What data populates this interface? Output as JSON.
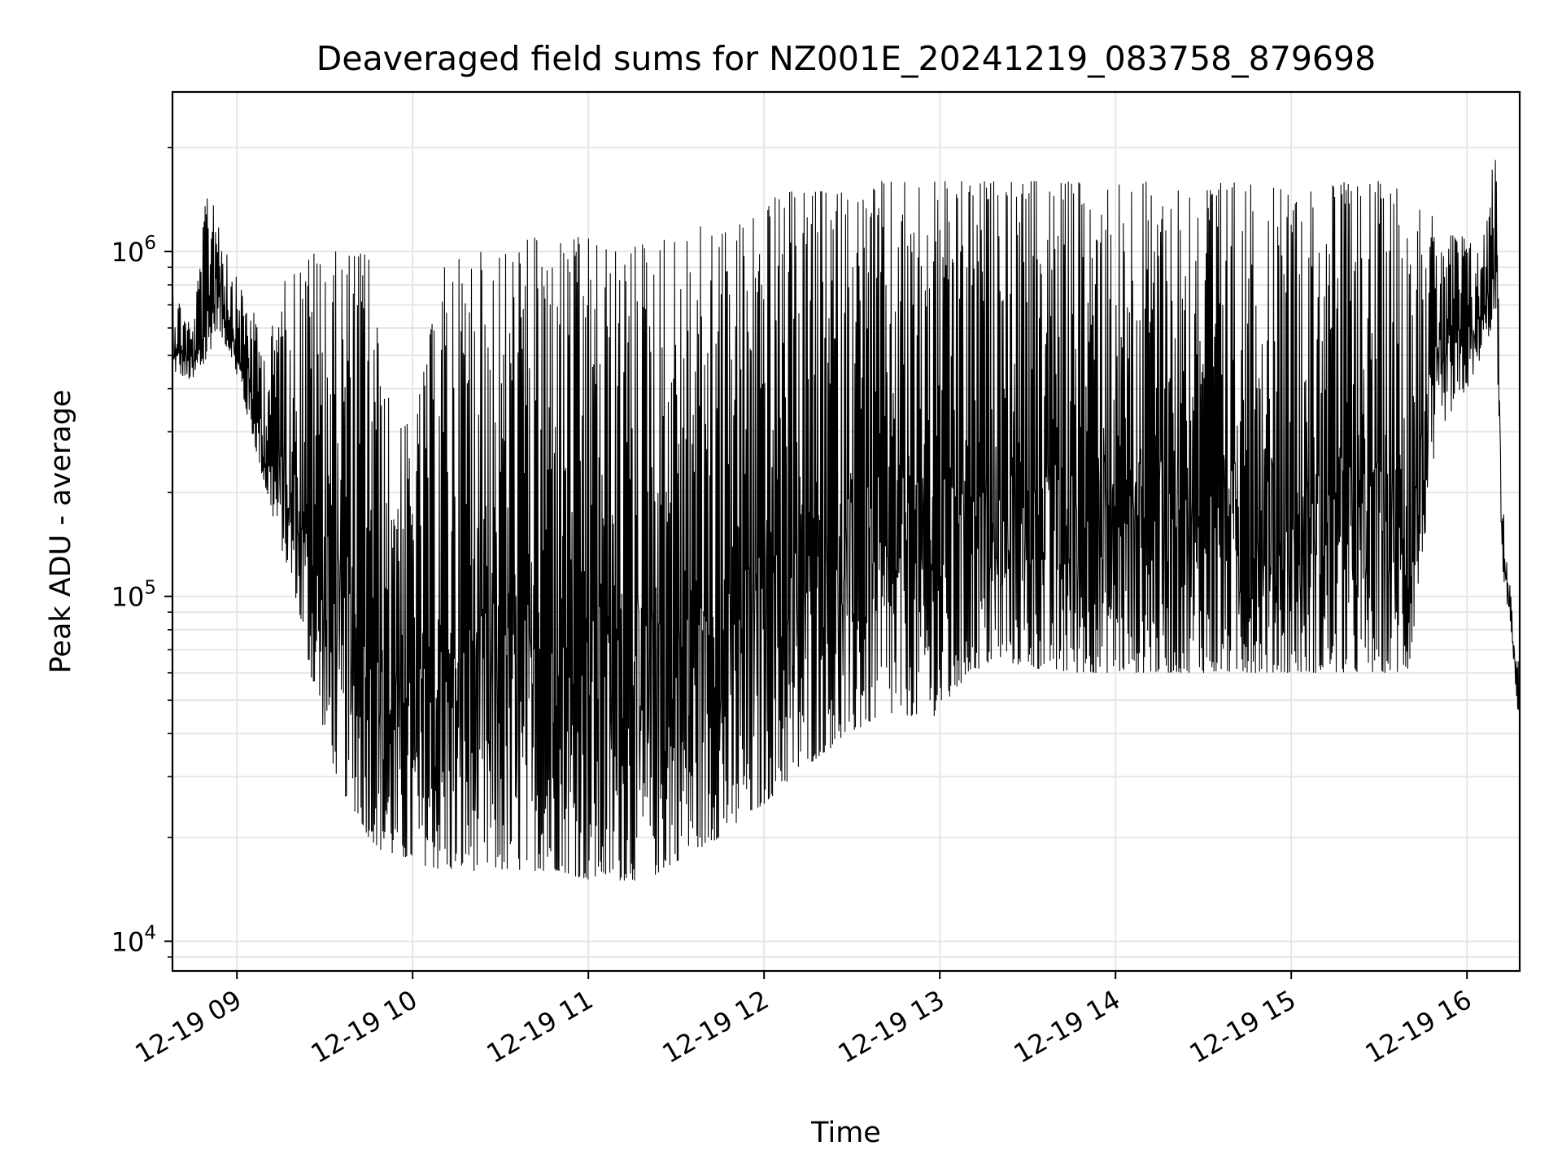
{
  "chart_data": {
    "type": "line",
    "title": "Deaveraged field sums for NZ001E_20241219_083758_879698",
    "xlabel": "Time",
    "ylabel": "Peak ADU - average",
    "yscale": "log",
    "xlim": [
      "12-19 08:38",
      "12-19 16:18"
    ],
    "ylim": [
      8200,
      2900000
    ],
    "x_ticks": [
      "12-19 09",
      "12-19 10",
      "12-19 11",
      "12-19 12",
      "12-19 13",
      "12-19 14",
      "12-19 15",
      "12-19 16"
    ],
    "y_ticks": [
      {
        "base": "10",
        "exp": "4",
        "value": 10000
      },
      {
        "base": "10",
        "exp": "5",
        "value": 100000
      },
      {
        "base": "10",
        "exp": "6",
        "value": 1000000
      }
    ],
    "grid": true,
    "line_color": "#000000",
    "series": [
      {
        "x": [
          "12-19 08:38",
          "12-19 08:45",
          "12-19 08:50",
          "12-19 08:53",
          "12-19 08:58",
          "12-19 09:05",
          "12-19 09:10",
          "12-19 09:15",
          "12-19 09:20",
          "12-19 09:25",
          "12-19 09:30",
          "12-19 09:35",
          "12-19 09:40",
          "12-19 09:45",
          "12-19 09:50",
          "12-19 10:00",
          "12-19 10:10",
          "12-19 10:20",
          "12-19 10:30",
          "12-19 10:40",
          "12-19 10:50",
          "12-19 11:00",
          "12-19 11:10",
          "12-19 11:20",
          "12-19 11:30",
          "12-19 11:40",
          "12-19 11:50",
          "12-19 12:00",
          "12-19 12:10",
          "12-19 12:20",
          "12-19 12:30",
          "12-19 12:40",
          "12-19 12:50",
          "12-19 13:00",
          "12-19 13:10",
          "12-19 13:20",
          "12-19 13:40",
          "12-19 14:00",
          "12-19 14:20",
          "12-19 14:40",
          "12-19 15:00",
          "12-19 15:20",
          "12-19 15:40",
          "12-19 15:50",
          "12-19 16:00",
          "12-19 16:05",
          "12-19 16:10",
          "12-19 16:12",
          "12-19 16:15",
          "12-19 16:18"
        ],
        "low": [
          450000,
          420000,
          480000,
          600000,
          500000,
          300000,
          200000,
          140000,
          100000,
          60000,
          40000,
          28000,
          24000,
          20000,
          18000,
          17000,
          16000,
          16000,
          16000,
          16000,
          16000,
          15000,
          15000,
          15000,
          17000,
          19000,
          21000,
          25000,
          30000,
          35000,
          40000,
          45000,
          45000,
          45000,
          60000,
          65000,
          60000,
          60000,
          60000,
          60000,
          60000,
          60000,
          60000,
          300000,
          400000,
          500000,
          650000,
          120000,
          80000,
          40000
        ],
        "high": [
          800000,
          600000,
          1600000,
          1500000,
          900000,
          700000,
          500000,
          800000,
          900000,
          1000000,
          1000000,
          1000000,
          1000000,
          1100000,
          400000,
          300000,
          900000,
          1000000,
          1000000,
          1100000,
          1100000,
          1100000,
          1000000,
          1100000,
          1100000,
          1200000,
          1200000,
          1400000,
          1500000,
          1500000,
          1500000,
          1600000,
          1600000,
          1600000,
          1600000,
          1600000,
          1600000,
          1600000,
          1600000,
          1600000,
          1500000,
          1600000,
          1600000,
          1200000,
          1100000,
          1000000,
          2200000,
          200000,
          100000,
          60000
        ]
      }
    ]
  }
}
